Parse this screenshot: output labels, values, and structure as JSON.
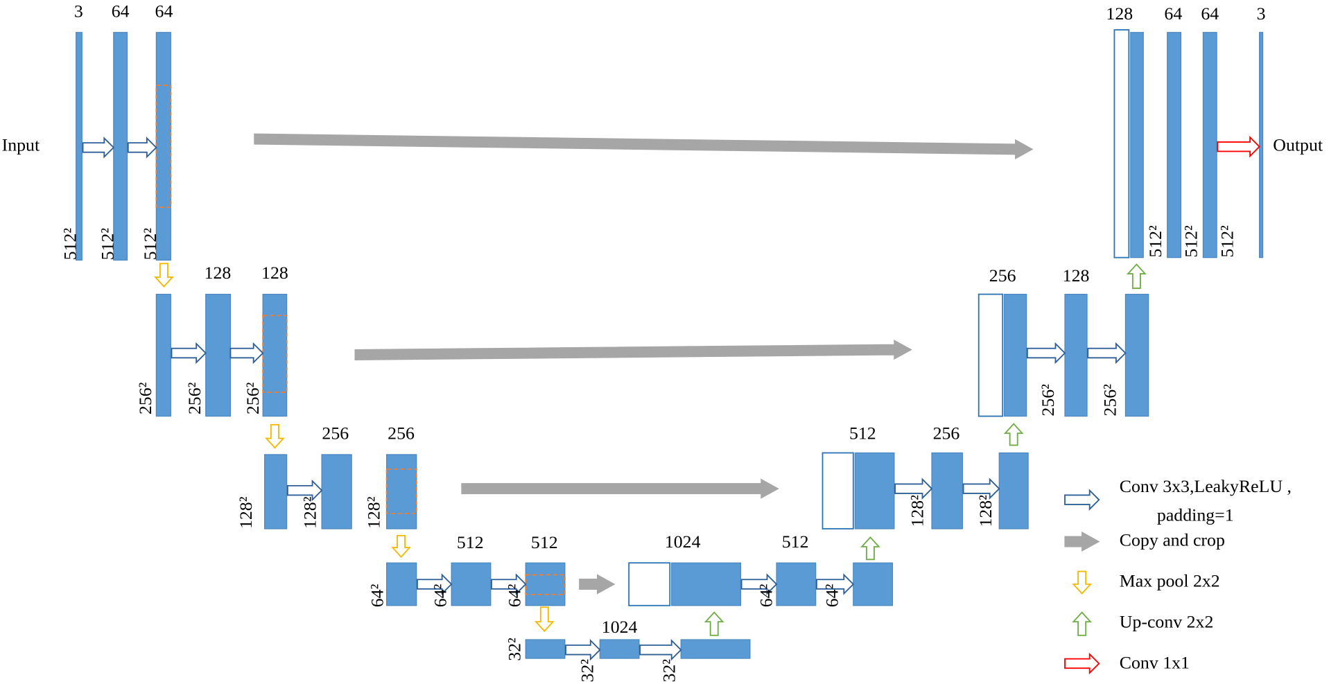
{
  "input_label": "Input",
  "output_label": "Output",
  "channel_labels": [
    "3",
    "64",
    "64",
    "128",
    "128",
    "256",
    "256",
    "512",
    "512",
    "1024",
    "1024",
    "512",
    "512",
    "256",
    "256",
    "128",
    "128",
    "64",
    "64",
    "3"
  ],
  "size_labels": [
    "512²",
    "512²",
    "512²",
    "256²",
    "256²",
    "256²",
    "128²",
    "128²",
    "128²",
    "64²",
    "64²",
    "64²",
    "32²",
    "32²",
    "32²",
    "64²",
    "64²",
    "128²",
    "128²",
    "256²",
    "256²",
    "512²",
    "512²",
    "512²"
  ],
  "legend": [
    [
      "Conv 3x3,LeakyReLU ,",
      "padding=1"
    ],
    [
      "Copy and crop"
    ],
    [
      "Max pool 2x2"
    ],
    [
      "Up-conv 2x2"
    ],
    [
      "Conv 1x1"
    ]
  ]
}
